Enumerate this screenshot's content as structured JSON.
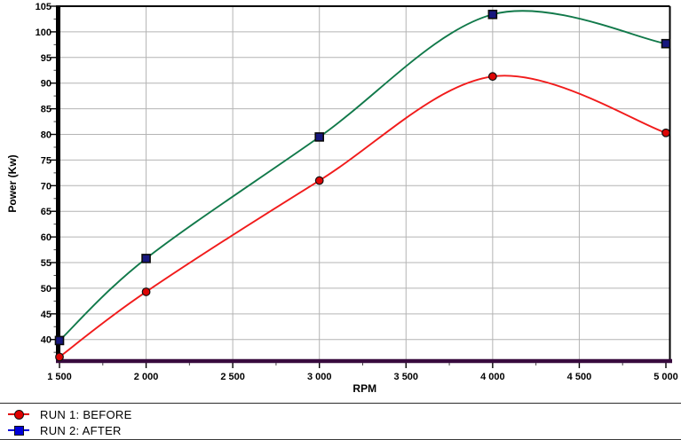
{
  "chart_data": {
    "type": "line",
    "title": "",
    "xlabel": "RPM",
    "ylabel": "Power (Kw)",
    "x_range": [
      1500,
      5000
    ],
    "y_range": [
      35.8,
      105
    ],
    "x_ticks": [
      {
        "value": 1500,
        "label": "1 500"
      },
      {
        "value": 2000,
        "label": "2 000"
      },
      {
        "value": 2500,
        "label": "2 500"
      },
      {
        "value": 3000,
        "label": "3 000"
      },
      {
        "value": 3500,
        "label": "3 500"
      },
      {
        "value": 4000,
        "label": "4 000"
      },
      {
        "value": 4500,
        "label": "4 500"
      },
      {
        "value": 5000,
        "label": "5 000"
      }
    ],
    "y_ticks": [
      40,
      45,
      50,
      55,
      60,
      65,
      70,
      75,
      80,
      85,
      90,
      95,
      100,
      105
    ],
    "x_minor_step": 250,
    "y_minor_step": 2.5,
    "grid": true,
    "legend_position": "bottom-left",
    "series": [
      {
        "name": "RUN 1: BEFORE",
        "curve": "spline",
        "color": "#f11b1b",
        "marker": "circle",
        "marker_fill": "#dd0505",
        "marker_stroke": "#111111",
        "legend_color": "#e00000",
        "x": [
          1500,
          2000,
          3000,
          4000,
          5000
        ],
        "values": [
          36.6,
          49.3,
          71.0,
          91.3,
          80.3
        ]
      },
      {
        "name": "RUN 2: AFTER",
        "curve": "spline",
        "color": "#11794a",
        "marker": "square",
        "marker_fill": "#17177e",
        "marker_stroke": "#0a0a0a",
        "legend_color": "#0000d9",
        "x": [
          1500,
          2000,
          3000,
          4000,
          5000
        ],
        "values": [
          39.8,
          55.8,
          79.5,
          103.4,
          97.7
        ]
      }
    ],
    "axis_colors": {
      "y_axis": "#000000",
      "top_border": "#000000",
      "right_border": "#000000",
      "x_axis": "#380a3e",
      "grid": "#b4b4b4",
      "tick": "#444444",
      "label": "#000000"
    }
  }
}
